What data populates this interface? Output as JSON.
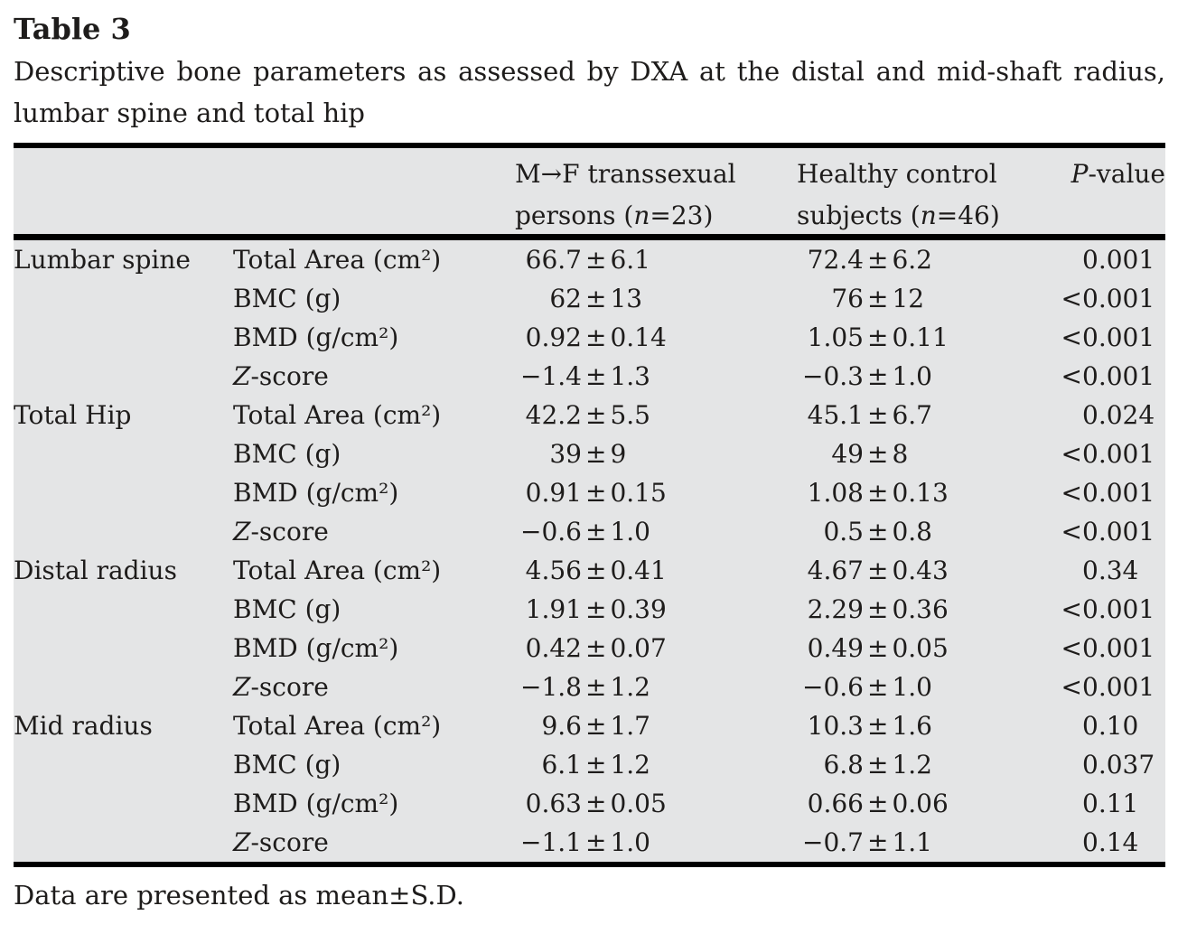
{
  "title": "Table 3",
  "caption_line1": "Descriptive bone parameters as assessed by DXA at the distal and mid-shaft radius,",
  "caption_line2": "lumbar spine and total hip",
  "footnote": "Data are presented as mean±S.D.",
  "colors": {
    "table_background": "#e4e5e6",
    "text": "#1e1c1b",
    "rule": "#000000",
    "page_background": "#ffffff"
  },
  "table": {
    "column_headers": {
      "group1_line1": "M→F transsexual",
      "group1_line2": "persons (*n*=23)",
      "group2_line1": "Healthy control",
      "group2_line2": "subjects (*n*=46)",
      "pvalue": "*P*-value"
    },
    "sections": [
      {
        "region": "Lumbar spine",
        "rows": [
          {
            "parameter": "Total Area (cm²)",
            "transsexual": "66.7±6.1",
            "control": "72.4±6.2",
            "p_value": "0.001"
          },
          {
            "parameter": "BMC (g)",
            "transsexual": "62±13",
            "control": "76±12",
            "p_value": "<0.001"
          },
          {
            "parameter": "BMD (g/cm²)",
            "transsexual": "0.92±0.14",
            "control": "1.05±0.11",
            "p_value": "<0.001"
          },
          {
            "parameter": "*Z*-score",
            "transsexual": "−1.4±1.3",
            "control": "−0.3±1.0",
            "p_value": "<0.001"
          }
        ]
      },
      {
        "region": "Total Hip",
        "rows": [
          {
            "parameter": "Total Area (cm²)",
            "transsexual": "42.2±5.5",
            "control": "45.1±6.7",
            "p_value": "0.024"
          },
          {
            "parameter": "BMC (g)",
            "transsexual": "39±9",
            "control": "49±8",
            "p_value": "<0.001"
          },
          {
            "parameter": "BMD (g/cm²)",
            "transsexual": "0.91±0.15",
            "control": "1.08±0.13",
            "p_value": "<0.001"
          },
          {
            "parameter": "*Z*-score",
            "transsexual": "−0.6±1.0",
            "control": "0.5±0.8",
            "p_value": "<0.001"
          }
        ]
      },
      {
        "region": "Distal radius",
        "rows": [
          {
            "parameter": "Total Area (cm²)",
            "transsexual": "4.56±0.41",
            "control": "4.67±0.43",
            "p_value": "0.34"
          },
          {
            "parameter": "BMC (g)",
            "transsexual": "1.91±0.39",
            "control": "2.29±0.36",
            "p_value": "<0.001"
          },
          {
            "parameter": "BMD (g/cm²)",
            "transsexual": "0.42±0.07",
            "control": "0.49±0.05",
            "p_value": "<0.001"
          },
          {
            "parameter": "*Z*-score",
            "transsexual": "−1.8±1.2",
            "control": "−0.6±1.0",
            "p_value": "<0.001"
          }
        ]
      },
      {
        "region": "Mid radius",
        "rows": [
          {
            "parameter": "Total Area (cm²)",
            "transsexual": "9.6±1.7",
            "control": "10.3±1.6",
            "p_value": "0.10"
          },
          {
            "parameter": "BMC (g)",
            "transsexual": "6.1±1.2",
            "control": "6.8±1.2",
            "p_value": "0.037"
          },
          {
            "parameter": "BMD (g/cm²)",
            "transsexual": "0.63±0.05",
            "control": "0.66±0.06",
            "p_value": "0.11"
          },
          {
            "parameter": "*Z*-score",
            "transsexual": "−1.1±1.0",
            "control": "−0.7±1.1",
            "p_value": "0.14"
          }
        ]
      }
    ]
  }
}
